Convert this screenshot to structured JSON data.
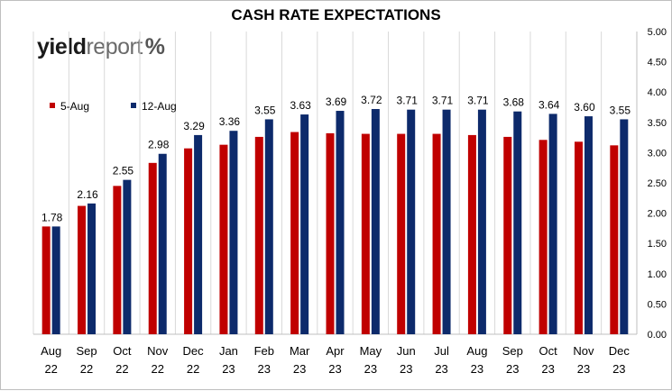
{
  "logo": {
    "part1": "yield",
    "part2": "report",
    "symbol": "%"
  },
  "chart_data": {
    "type": "bar",
    "title": "CASH RATE EXPECTATIONS",
    "categories": [
      [
        "Aug",
        "22"
      ],
      [
        "Sep",
        "22"
      ],
      [
        "Oct",
        "22"
      ],
      [
        "Nov",
        "22"
      ],
      [
        "Dec",
        "22"
      ],
      [
        "Jan",
        "23"
      ],
      [
        "Feb",
        "23"
      ],
      [
        "Mar",
        "23"
      ],
      [
        "Apr",
        "23"
      ],
      [
        "May",
        "23"
      ],
      [
        "Jun",
        "23"
      ],
      [
        "Jul",
        "23"
      ],
      [
        "Aug",
        "23"
      ],
      [
        "Sep",
        "23"
      ],
      [
        "Oct",
        "23"
      ],
      [
        "Nov",
        "23"
      ],
      [
        "Dec",
        "23"
      ]
    ],
    "series": [
      {
        "name": "5-Aug",
        "color": "#c00000",
        "values": [
          1.78,
          2.12,
          2.45,
          2.83,
          3.07,
          3.13,
          3.26,
          3.34,
          3.32,
          3.31,
          3.31,
          3.31,
          3.29,
          3.26,
          3.21,
          3.18,
          3.12
        ]
      },
      {
        "name": "12-Aug",
        "color": "#0d2a6b",
        "values": [
          1.78,
          2.16,
          2.55,
          2.98,
          3.29,
          3.36,
          3.55,
          3.63,
          3.69,
          3.72,
          3.71,
          3.71,
          3.71,
          3.68,
          3.64,
          3.6,
          3.55
        ],
        "labels": [
          "1.78",
          "2.16",
          "2.55",
          "2.98",
          "3.29",
          "3.36",
          "3.55",
          "3.63",
          "3.69",
          "3.72",
          "3.71",
          "3.71",
          "3.71",
          "3.68",
          "3.64",
          "3.60",
          "3.55"
        ]
      }
    ],
    "ylim": [
      0,
      5
    ],
    "yticks": [
      "0.00",
      "0.50",
      "1.00",
      "1.50",
      "2.00",
      "2.50",
      "3.00",
      "3.50",
      "4.00",
      "4.50",
      "5.00"
    ],
    "y_axis_side": "right",
    "grid": "vertical",
    "legend_position": "top-left"
  }
}
